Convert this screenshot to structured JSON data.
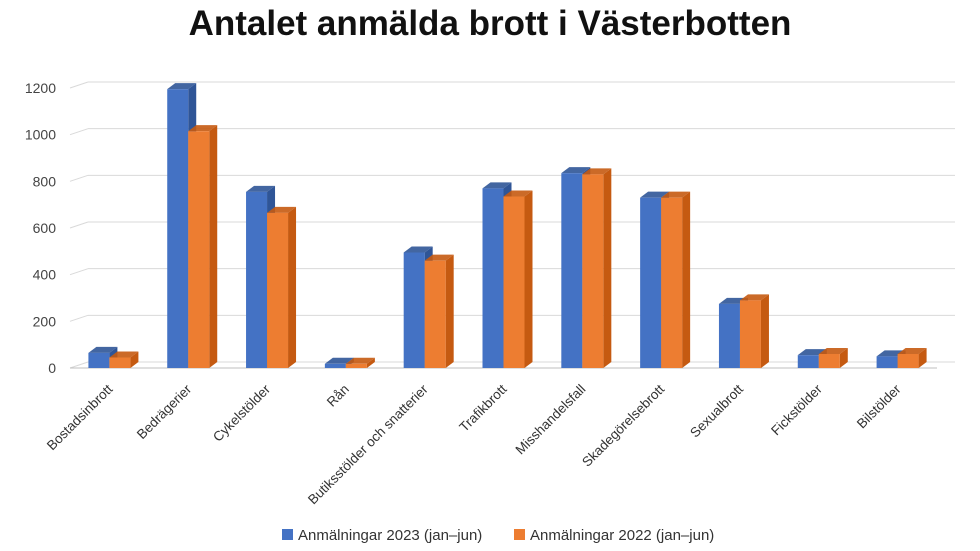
{
  "chart_data": {
    "type": "bar",
    "title": "Antalet anmälda brott i Västerbotten",
    "xlabel": "",
    "ylabel": "",
    "ylim": [
      0,
      1200
    ],
    "yticks": [
      0,
      200,
      400,
      600,
      800,
      1000,
      1200
    ],
    "grid": true,
    "legend_position": "bottom",
    "categories": [
      "Bostadsinbrott",
      "Bedrägerier",
      "Cykelstölder",
      "Rån",
      "Butiksstölder och snatterier",
      "Trafikbrott",
      "Misshandelsfall",
      "Skadegörelsebrott",
      "Sexualbrott",
      "Fickstölder",
      "Bilstölder"
    ],
    "series": [
      {
        "name": "Anmälningar 2023 (jan–jun)",
        "color": "#4472C4",
        "side_color": "#2F5597",
        "values": [
          65,
          1195,
          755,
          18,
          495,
          770,
          835,
          730,
          275,
          55,
          50
        ]
      },
      {
        "name": "Anmälningar 2022 (jan–jun)",
        "color": "#ED7D31",
        "side_color": "#C55A11",
        "values": [
          45,
          1015,
          665,
          18,
          460,
          735,
          830,
          730,
          290,
          60,
          60
        ]
      }
    ]
  }
}
